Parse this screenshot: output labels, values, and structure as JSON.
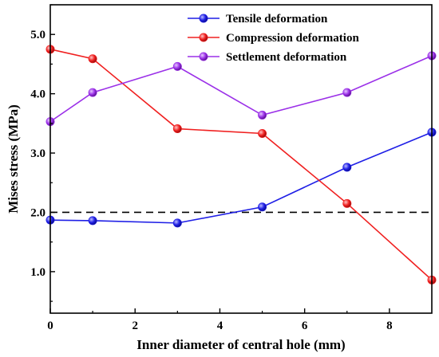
{
  "chart_data": {
    "type": "line",
    "x": [
      0,
      1,
      3,
      5,
      7,
      9
    ],
    "series": [
      {
        "name": "Tensile deformation",
        "color": "#1f1fe6",
        "values": [
          1.87,
          1.86,
          1.82,
          2.09,
          2.76,
          3.35
        ]
      },
      {
        "name": "Compression deformation",
        "color": "#f02020",
        "values": [
          4.75,
          4.59,
          3.41,
          3.33,
          2.15,
          0.86
        ]
      },
      {
        "name": "Settlement deformation",
        "color": "#9b30e8",
        "values": [
          3.53,
          4.02,
          4.46,
          3.64,
          4.02,
          4.64
        ]
      }
    ],
    "xlabel": "Inner diameter of central hole (mm)",
    "ylabel": "Mises stress (MPa)",
    "xlim": [
      0,
      9
    ],
    "ylim": [
      0.3,
      5.5
    ],
    "xticks": [
      0,
      2,
      4,
      6,
      8
    ],
    "xtick_labels": [
      "0",
      "2",
      "4",
      "6",
      "8"
    ],
    "yticks": [
      1.0,
      2.0,
      3.0,
      4.0,
      5.0
    ],
    "ytick_labels": [
      "1.0",
      "2.0",
      "3.0",
      "4.0",
      "5.0"
    ],
    "reference_line": {
      "y": 2.0,
      "style": "dashed",
      "color": "#000000"
    },
    "grid": false,
    "legend_position": "top-right"
  }
}
